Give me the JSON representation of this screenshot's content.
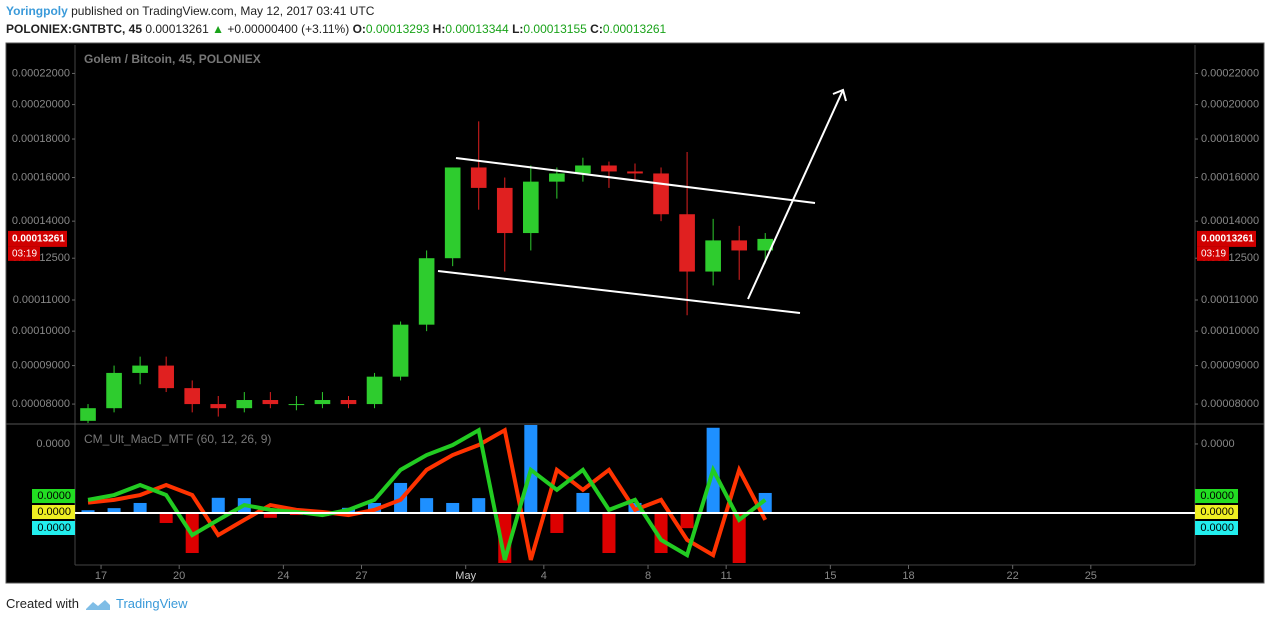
{
  "header": {
    "author": "Yoringpoly",
    "published": "published on TradingView.com, May 12, 2017 03:41 UTC",
    "symbol": "POLONIEX:GNTBTC, 45",
    "price": "0.00013261",
    "arrow": "▲",
    "change": "+0.00000400 (+3.11%)",
    "o_label": "O:",
    "o": "0.00013293",
    "h_label": "H:",
    "h": "0.00013344",
    "l_label": "L:",
    "l": "0.00013155",
    "c_label": "C:",
    "c": "0.00013261"
  },
  "chart_data": {
    "type": "candlestick",
    "title": "Golem / Bitcoin, 45, POLONIEX",
    "log_scale": true,
    "up_color": "#2ecc2e",
    "down_color": "#e02020",
    "x": [
      "2017-04-16",
      "2017-04-17",
      "2017-04-18",
      "2017-04-19",
      "2017-04-20",
      "2017-04-21",
      "2017-04-22",
      "2017-04-23",
      "2017-04-24",
      "2017-04-25",
      "2017-04-26",
      "2017-04-27",
      "2017-04-28",
      "2017-04-29",
      "2017-04-30",
      "2017-05-01",
      "2017-05-02",
      "2017-05-03",
      "2017-05-04",
      "2017-05-05",
      "2017-05-06",
      "2017-05-07",
      "2017-05-08",
      "2017-05-09",
      "2017-05-10",
      "2017-05-11",
      "2017-05-12"
    ],
    "open": [
      7.6e-05,
      7.9e-05,
      8.8e-05,
      9e-05,
      8.4e-05,
      8e-05,
      7.9e-05,
      8.1e-05,
      8e-05,
      8e-05,
      8.1e-05,
      8e-05,
      8.7e-05,
      0.000102,
      0.000125,
      0.000165,
      0.000155,
      0.000135,
      0.000158,
      0.000162,
      0.000166,
      0.000163,
      0.000162,
      0.000143,
      0.00012,
      0.000132,
      0.000128
    ],
    "high": [
      8e-05,
      9e-05,
      9.25e-05,
      9.25e-05,
      8.6e-05,
      8.2e-05,
      8.3e-05,
      8.3e-05,
      8.2e-05,
      8.3e-05,
      8.2e-05,
      8.8e-05,
      0.000103,
      0.000128,
      0.000165,
      0.00019,
      0.00016,
      0.000166,
      0.000165,
      0.00017,
      0.000168,
      0.000167,
      0.000165,
      0.000173,
      0.000141,
      0.000138,
      0.000135
    ],
    "low": [
      7.55e-05,
      7.8e-05,
      8.5e-05,
      8.3e-05,
      7.8e-05,
      7.7e-05,
      7.8e-05,
      7.9e-05,
      7.85e-05,
      7.9e-05,
      7.9e-05,
      7.9e-05,
      8.6e-05,
      0.0001,
      0.000122,
      0.000145,
      0.00012,
      0.000128,
      0.00015,
      0.000158,
      0.000155,
      0.000158,
      0.00014,
      0.000105,
      0.000115,
      0.000117,
      0.000123
    ],
    "close": [
      7.9e-05,
      8.8e-05,
      9e-05,
      8.4e-05,
      8e-05,
      7.9e-05,
      8.1e-05,
      8e-05,
      8e-05,
      8.1e-05,
      8e-05,
      8.7e-05,
      0.000102,
      0.000125,
      0.000165,
      0.000155,
      0.000135,
      0.000158,
      0.000162,
      0.000166,
      0.000163,
      0.000162,
      0.000143,
      0.00012,
      0.000132,
      0.000128,
      0.00013261
    ],
    "xlim": [
      "2017-04-16",
      "2017-05-29"
    ],
    "xticks": [
      {
        "value": "2017-04-17",
        "label": "17"
      },
      {
        "value": "2017-04-20",
        "label": "20"
      },
      {
        "value": "2017-04-24",
        "label": "24"
      },
      {
        "value": "2017-04-27",
        "label": "27"
      },
      {
        "value": "2017-05-01",
        "label": "May"
      },
      {
        "value": "2017-05-04",
        "label": "4"
      },
      {
        "value": "2017-05-08",
        "label": "8"
      },
      {
        "value": "2017-05-11",
        "label": "11"
      },
      {
        "value": "2017-05-15",
        "label": "15"
      },
      {
        "value": "2017-05-18",
        "label": "18"
      },
      {
        "value": "2017-05-22",
        "label": "22"
      },
      {
        "value": "2017-05-25",
        "label": "25"
      }
    ],
    "ylim": [
      7.55e-05,
      0.00024
    ],
    "yticks": [
      {
        "value": 0.00022,
        "label": "0.00022000"
      },
      {
        "value": 0.0002,
        "label": "0.00020000"
      },
      {
        "value": 0.00018,
        "label": "0.00018000"
      },
      {
        "value": 0.00016,
        "label": "0.00016000"
      },
      {
        "value": 0.00014,
        "label": "0.00014000"
      },
      {
        "value": 0.000125,
        "label": "0.00012500"
      },
      {
        "value": 0.00011,
        "label": "0.00011000"
      },
      {
        "value": 0.0001,
        "label": "0.00010000"
      },
      {
        "value": 9e-05,
        "label": "0.00009000"
      },
      {
        "value": 8e-05,
        "label": "0.00008000"
      }
    ],
    "price_badge": {
      "label": "0.00013261",
      "time": "03:19",
      "color": "#d00000"
    },
    "indicator": {
      "title": "CM_Ult_MacD_MTF (60, 12, 26, 9)",
      "ylim": [
        -1.45e-05,
        2.55e-05
      ],
      "yticks": [
        {
          "value": 2e-05,
          "label": "0.0000"
        }
      ],
      "badges": [
        {
          "label": "0.0000",
          "color": "#22dd22"
        },
        {
          "label": "0.0000",
          "color": "#eeee22"
        },
        {
          "label": "0.0000",
          "color": "#22eeee"
        }
      ],
      "histogram": {
        "up_color": "#1e90ff",
        "down_color": "#dd0000",
        "values": [
          8e-07,
          1.4e-06,
          2.9e-06,
          -2.9e-06,
          -1.16e-05,
          4.4e-06,
          4.3e-06,
          -1.4e-06,
          -6e-07,
          -9e-07,
          1.5e-06,
          2.9e-06,
          8.7e-06,
          4.3e-06,
          2.9e-06,
          4.3e-06,
          -3.76e-05,
          2.61e-05,
          -5.8e-06,
          5.8e-06,
          -1.16e-05,
          2.9e-06,
          -1.16e-05,
          -4.4e-06,
          2.47e-05,
          -1.45e-05,
          5.8e-06
        ]
      },
      "macd": {
        "color": "#22cc22",
        "values": [
          3.8e-06,
          5.2e-06,
          8.1e-06,
          5.2e-06,
          -6.4e-06,
          -2e-06,
          2.3e-06,
          9e-07,
          3e-07,
          -6e-07,
          9e-07,
          3.8e-06,
          1.25e-05,
          1.68e-05,
          1.97e-05,
          2.4e-05,
          -1.36e-05,
          1.25e-05,
          6.7e-06,
          1.25e-05,
          9e-07,
          3.8e-06,
          -7.8e-06,
          -1.22e-05,
          1.25e-05,
          -2e-06,
          3.8e-06
        ]
      },
      "signal": {
        "color": "#ff3300",
        "values": [
          3e-06,
          3.8e-06,
          5.2e-06,
          8.1e-06,
          5.2e-06,
          -6.4e-06,
          -2e-06,
          2.3e-06,
          9e-07,
          3e-07,
          -6e-07,
          9e-07,
          3.8e-06,
          1.25e-05,
          1.68e-05,
          1.97e-05,
          2.4e-05,
          -1.36e-05,
          1.25e-05,
          6.7e-06,
          1.25e-05,
          9e-07,
          3.8e-06,
          -7.8e-06,
          -1.22e-05,
          1.25e-05,
          -2e-06
        ]
      }
    }
  },
  "footer": {
    "created": "Created with",
    "brand": "TradingView"
  }
}
